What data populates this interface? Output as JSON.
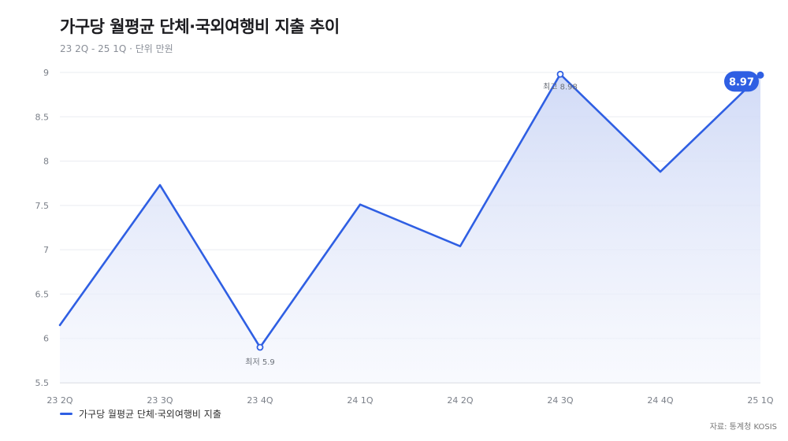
{
  "header": {
    "title": "가구당 월평균 단체·국외여행비 지출 추이",
    "subtitle": "23 2Q - 25 1Q · 단위 만원"
  },
  "footer": {
    "source": "자료: 통계청 KOSIS"
  },
  "colors": {
    "line": "#2f5fe3",
    "fill_top": "#cfd9f6",
    "fill_bottom": "#f4f6fd",
    "grid": "#e9ecf1"
  },
  "chart_data": {
    "type": "area",
    "categories": [
      "23 2Q",
      "23 3Q",
      "23 4Q",
      "24 1Q",
      "24 2Q",
      "24 3Q",
      "24 4Q",
      "25 1Q"
    ],
    "series": [
      {
        "name": "가구당 월평균 단체·국외여행비 지출",
        "values": [
          6.15,
          7.73,
          5.9,
          7.51,
          7.04,
          8.98,
          7.88,
          8.97
        ]
      }
    ],
    "ylim": [
      5.5,
      9
    ],
    "yticks": [
      "5.5",
      "6",
      "6.5",
      "7",
      "7.5",
      "8",
      "8.5",
      "9"
    ],
    "grid": true,
    "legend": "bottom-left",
    "annotations": [
      {
        "label": "최저 5.9",
        "index": 2
      },
      {
        "label": "최고 8.98",
        "index": 5
      },
      {
        "label": "8.97",
        "index": 7,
        "style": "callout"
      }
    ]
  }
}
